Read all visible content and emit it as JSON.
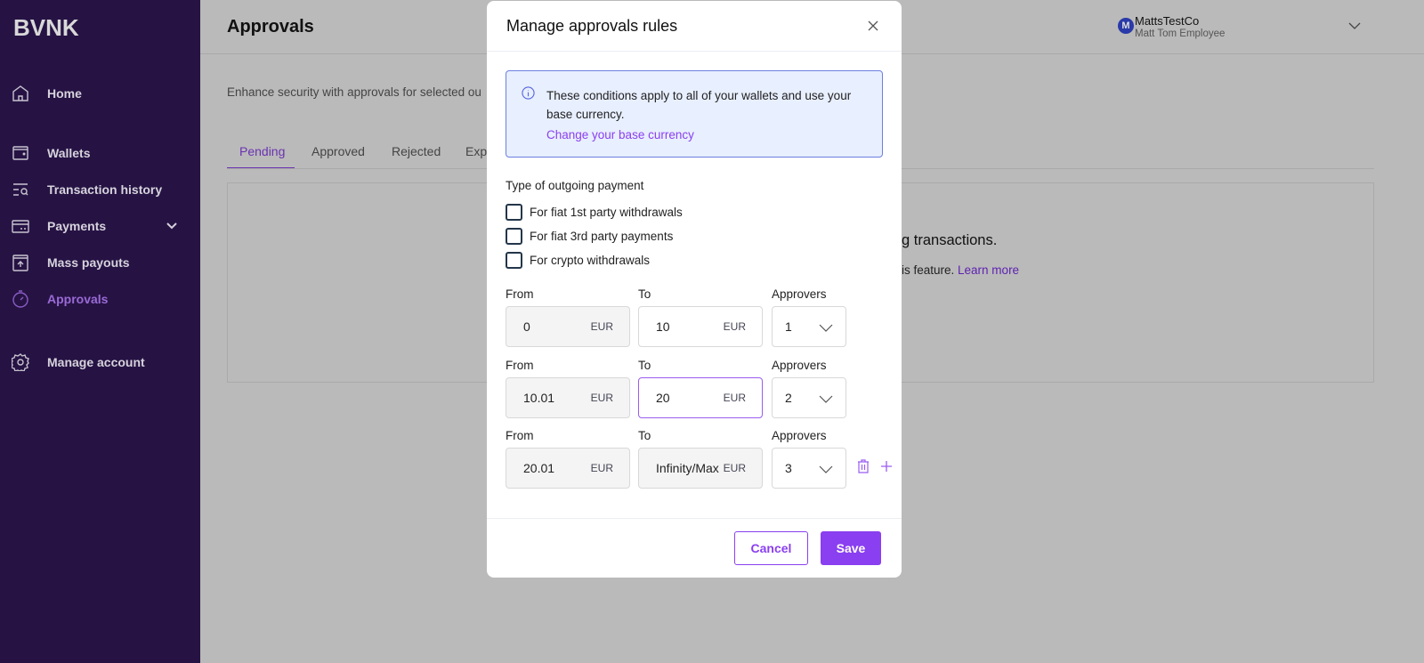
{
  "brand": "BVNK",
  "sidebar": {
    "items": [
      {
        "label": "Home",
        "icon": "home-icon"
      },
      {
        "label": "Wallets",
        "icon": "wallet-icon"
      },
      {
        "label": "Transaction history",
        "icon": "list-search-icon"
      },
      {
        "label": "Payments",
        "icon": "card-icon"
      },
      {
        "label": "Mass payouts",
        "icon": "upload-box-icon"
      },
      {
        "label": "Approvals",
        "icon": "stopwatch-icon",
        "active": true
      },
      {
        "label": "Manage account",
        "icon": "gear-icon"
      }
    ]
  },
  "header": {
    "title": "Approvals",
    "account_name": "MattsTestCo",
    "account_user": "Matt Tom Employee",
    "avatar_letter": "M"
  },
  "page": {
    "description": "Enhance security with approvals for selected ou",
    "tabs": [
      "Pending",
      "Approved",
      "Rejected",
      "Exp"
    ],
    "active_tab": "Pending",
    "empty_title": "g transactions.",
    "empty_text": "is feature. ",
    "learn_more": "Learn more"
  },
  "modal": {
    "title": "Manage approvals rules",
    "info_text": "These conditions apply to all of your wallets and use your base currency.",
    "info_link": "Change your base currency",
    "type_label": "Type of outgoing payment",
    "checkboxes": [
      {
        "label": "For fiat 1st party withdrawals",
        "checked": false
      },
      {
        "label": "For fiat 3rd party payments",
        "checked": false
      },
      {
        "label": "For crypto withdrawals",
        "checked": false
      }
    ],
    "labels": {
      "from": "From",
      "to": "To",
      "approvers": "Approvers"
    },
    "rules": [
      {
        "from": "0",
        "to": "10",
        "currency": "EUR",
        "approvers": "1"
      },
      {
        "from": "10.01",
        "to": "20",
        "currency": "EUR",
        "approvers": "2"
      },
      {
        "from": "20.01",
        "to": "Infinity/Max",
        "currency": "EUR",
        "approvers": "3"
      }
    ],
    "cancel": "Cancel",
    "save": "Save"
  },
  "colors": {
    "accent": "#8a3ff0",
    "sidebar": "#261344"
  }
}
